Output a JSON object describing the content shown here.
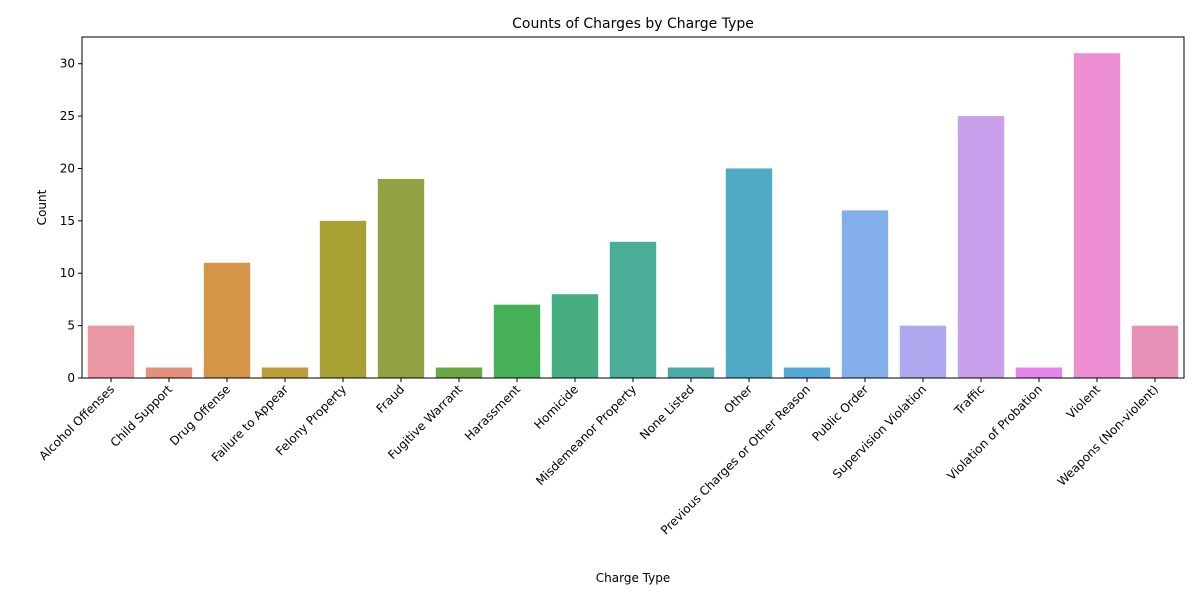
{
  "chart_data": {
    "type": "bar",
    "title": "Counts of Charges by Charge Type",
    "xlabel": "Charge Type",
    "ylabel": "Count",
    "ylim": [
      0,
      32.55
    ],
    "yticks": [
      0,
      5,
      10,
      15,
      20,
      25,
      30
    ],
    "grid": false,
    "legend": "none",
    "categories": [
      "Alcohol Offenses",
      "Child Support",
      "Drug Offense",
      "Failure to Appear",
      "Felony Property",
      "Fraud",
      "Fugitive Warrant",
      "Harassment",
      "Homicide",
      "Misdemeanor Property",
      "None Listed",
      "Other",
      "Previous Charges or Other Reason",
      "Public Order",
      "Supervision Violation",
      "Traffic",
      "Violation of Probation",
      "Violent",
      "Weapons (Non-violent)"
    ],
    "values": [
      5,
      1,
      11,
      1,
      15,
      19,
      1,
      7,
      8,
      13,
      1,
      20,
      1,
      16,
      5,
      25,
      1,
      31,
      5
    ],
    "colors": [
      "#ea96a3",
      "#e5907a",
      "#d49548",
      "#bd9e39",
      "#a8a033",
      "#92a143",
      "#6aa843",
      "#45b058",
      "#47ae83",
      "#49ad9a",
      "#4aabad",
      "#4eaac5",
      "#54a9db",
      "#82aee9",
      "#aea9ee",
      "#c89fea",
      "#e485ec",
      "#ec8ed1",
      "#e891b6"
    ]
  }
}
